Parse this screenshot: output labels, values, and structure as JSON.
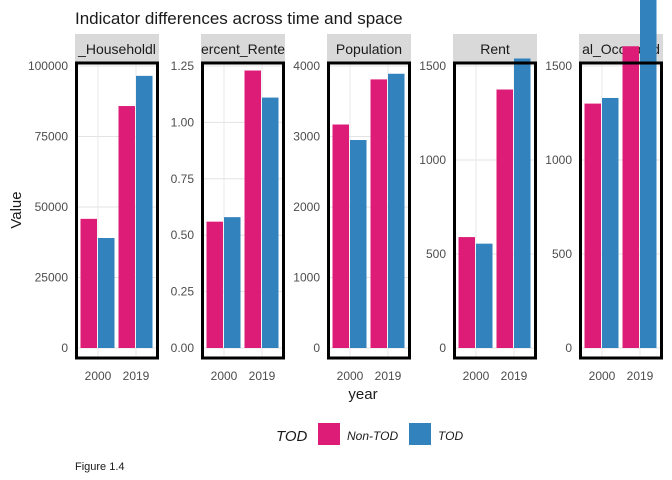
{
  "chart_data": {
    "type": "bar",
    "title": "Indicator differences across time and space",
    "xlabel": "year",
    "ylabel": "Value",
    "caption": "Figure 1.4",
    "categories": [
      "2000",
      "2019"
    ],
    "legend": {
      "title": "TOD",
      "position": "bottom"
    },
    "series": [
      {
        "name": "Non-TOD",
        "color": "#DD1C77"
      },
      {
        "name": "TOD",
        "color": "#3182BD"
      }
    ],
    "facets": [
      {
        "strip": "Median_Household_Income",
        "strip_visible": "_Householdl",
        "ylim": [
          0,
          100000
        ],
        "yticks": [
          0,
          25000,
          50000,
          75000,
          100000
        ],
        "ytick_labels": [
          "0",
          "25000",
          "50000",
          "75000",
          "100000"
        ],
        "values": {
          "2000": [
            45800,
            39000
          ],
          "2019": [
            85800,
            96500
          ]
        }
      },
      {
        "strip": "Percent_Renters",
        "strip_visible": "ercent_Rente",
        "ylim": [
          0,
          1.25
        ],
        "yticks": [
          0,
          0.25,
          0.5,
          0.75,
          1.0,
          1.25
        ],
        "ytick_labels": [
          "0.00",
          "0.25",
          "0.50",
          "0.75",
          "1.00",
          "1.25"
        ],
        "values": {
          "2000": [
            0.56,
            0.58
          ],
          "2019": [
            1.23,
            1.11
          ]
        }
      },
      {
        "strip": "Population",
        "strip_visible": "Population",
        "ylim": [
          0,
          4000
        ],
        "yticks": [
          0,
          1000,
          2000,
          3000,
          4000
        ],
        "ytick_labels": [
          "0",
          "1000",
          "2000",
          "3000",
          "4000"
        ],
        "values": {
          "2000": [
            3170,
            2950
          ],
          "2019": [
            3810,
            3890
          ]
        }
      },
      {
        "strip": "Rent",
        "strip_visible": "Rent",
        "ylim": [
          0,
          1500
        ],
        "yticks": [
          0,
          500,
          1000,
          1500
        ],
        "ytick_labels": [
          "0",
          "500",
          "1000",
          "1500"
        ],
        "values": {
          "2000": [
            590,
            555
          ],
          "2019": [
            1375,
            1540
          ]
        }
      },
      {
        "strip": "Total_Occupied",
        "strip_visible": "al_Occupied",
        "ylim": [
          0,
          1500
        ],
        "yticks": [
          0,
          500,
          1000,
          1500
        ],
        "ytick_labels": [
          "0",
          "500",
          "1000",
          "1500"
        ],
        "values": {
          "2000": [
            1300,
            1330
          ],
          "2019": [
            1605,
            1860
          ]
        }
      }
    ]
  }
}
